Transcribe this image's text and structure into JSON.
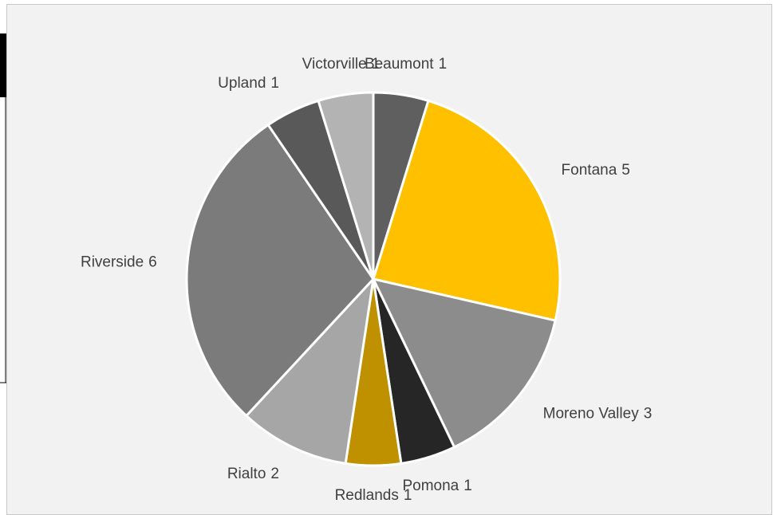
{
  "chart_data": {
    "type": "pie",
    "categories": [
      "Beaumont",
      "Fontana",
      "Moreno Valley",
      "Pomona",
      "Redlands",
      "Rialto",
      "Riverside",
      "Upland",
      "Victorville"
    ],
    "values": [
      1,
      5,
      3,
      1,
      1,
      2,
      6,
      1,
      1
    ],
    "colors": [
      "#5f5f5f",
      "#ffc000",
      "#8c8c8c",
      "#262626",
      "#bf9000",
      "#a6a6a6",
      "#7b7b7b",
      "#595959",
      "#b3b3b3"
    ]
  }
}
